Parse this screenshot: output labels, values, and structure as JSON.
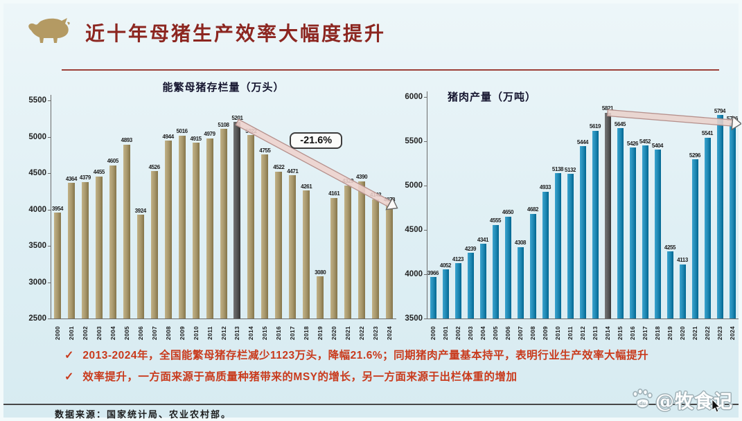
{
  "header": {
    "title": "近十年母猪生产效率大幅度提升",
    "logo": "boar-logo",
    "title_color": "#8c2620"
  },
  "palette": {
    "background": "#dfeff4",
    "title": "#8c2620",
    "bullet_text": "#c93a1c",
    "divider": "#9c3f38"
  },
  "chart_data": [
    {
      "type": "bar",
      "title": "能繁母猪存栏量（万头）",
      "xlabel": "",
      "ylabel": "",
      "grid": false,
      "legend": "none",
      "categories": [
        "2000",
        "2001",
        "2002",
        "2003",
        "2004",
        "2005",
        "2006",
        "2007",
        "2008",
        "2009",
        "2010",
        "2011",
        "2012",
        "2013",
        "2014",
        "2015",
        "2016",
        "2017",
        "2018",
        "2019",
        "2020",
        "2021",
        "2022",
        "2023",
        "2024"
      ],
      "values": [
        3954,
        4364,
        4379,
        4455,
        4605,
        4893,
        3924,
        4526,
        4944,
        5016,
        4915,
        4979,
        5108,
        5201,
        5022,
        4755,
        4522,
        4471,
        4261,
        3080,
        4161,
        4329,
        4390,
        4142,
        4078
      ],
      "ylim": [
        2500,
        5500
      ],
      "ytick_step": 500,
      "bar_color": "#a6966b",
      "highlight_index": 13,
      "highlight_color": "#555555",
      "trend_band": {
        "from_index": 13,
        "to_index": 24,
        "label": "-21.6%",
        "fill": "#eed2cd",
        "stroke": "#b5908c"
      }
    },
    {
      "type": "bar",
      "title": "猪肉产量（万吨）",
      "xlabel": "",
      "ylabel": "",
      "grid": false,
      "legend": "none",
      "categories": [
        "2000",
        "2001",
        "2002",
        "2003",
        "2004",
        "2005",
        "2006",
        "2007",
        "2008",
        "2009",
        "2010",
        "2011",
        "2012",
        "2013",
        "2014",
        "2015",
        "2016",
        "2017",
        "2018",
        "2019",
        "2020",
        "2021",
        "2022",
        "2023",
        "2024"
      ],
      "values": [
        3966,
        4052,
        4123,
        4239,
        4341,
        4555,
        4650,
        4308,
        4682,
        4933,
        5138,
        5132,
        5444,
        5619,
        5821,
        5645,
        5426,
        5452,
        5404,
        4255,
        4113,
        5296,
        5541,
        5794,
        5706
      ],
      "ylim": [
        3500,
        6000
      ],
      "ytick_step": 500,
      "bar_color": "#1e87b2",
      "highlight_index": 14,
      "highlight_color": "#5a5a5a",
      "trend_band": {
        "from_index": 14,
        "to_index": 24,
        "label": "",
        "fill": "#e9d2cc",
        "stroke": "#b5908c"
      }
    }
  ],
  "bullets": [
    {
      "check": "✓",
      "text": "2013-2024年，全国能繁母猪存栏减少1123万头，降幅21.6%；同期猪肉产量基本持平，表明行业生产效率大幅提升"
    },
    {
      "check": "✓",
      "text": "效率提升，一方面来源于高质量种猪带来的MSY的增长，另一方面来源于出栏体重的增加"
    }
  ],
  "footer": {
    "source": "数据来源：国家统计局、农业农村部。",
    "watermark": "@牧食记",
    "watermark_icon": "paw-du-icon"
  }
}
